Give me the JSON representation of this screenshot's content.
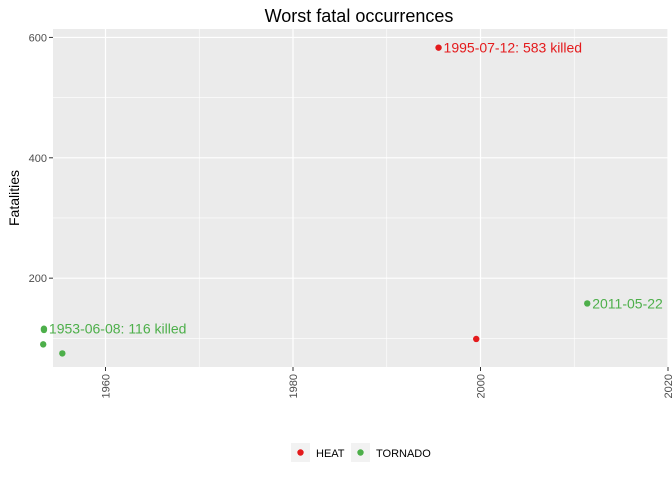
{
  "chart_data": {
    "type": "scatter",
    "title": "Worst fatal occurrences",
    "xlabel": "",
    "ylabel": "Fatalities",
    "xlim": [
      1954.4,
      2020
    ],
    "ylim": [
      52.4,
      614
    ],
    "x_ticks": [
      1960,
      1980,
      2000,
      2020
    ],
    "y_ticks": [
      200,
      400,
      600
    ],
    "x_tick_labels": [
      "1960",
      "1980",
      "2000",
      "2020"
    ],
    "y_tick_labels": [
      "200",
      "400",
      "600"
    ],
    "grid": true,
    "legend_position": "bottom",
    "series": [
      {
        "name": "HEAT",
        "color": "#e41a1c",
        "points": [
          {
            "x": "1995-07-12",
            "y": 583
          },
          {
            "x": "1999-07-19",
            "y": 99
          }
        ]
      },
      {
        "name": "TORNADO",
        "color": "#4daf4a",
        "points": [
          {
            "x": "1953-06-08",
            "y": 116
          },
          {
            "x": "1953-06-09",
            "y": 114
          },
          {
            "x": "1953-05-11",
            "y": 90
          },
          {
            "x": "1955-05-25",
            "y": 75
          },
          {
            "x": "2011-05-22",
            "y": 158
          }
        ]
      }
    ],
    "annotations": [
      {
        "text": "1995-07-12: 583 killed",
        "x": "1995-07-12",
        "y": 583,
        "color": "#e41a1c"
      },
      {
        "text": "1953-06-08: 116 killed",
        "x": "1953-06-08",
        "y": 116,
        "color": "#4daf4a"
      },
      {
        "text": "2011-05-22",
        "x": "2011-05-22",
        "y": 158,
        "color": "#4daf4a"
      }
    ]
  }
}
